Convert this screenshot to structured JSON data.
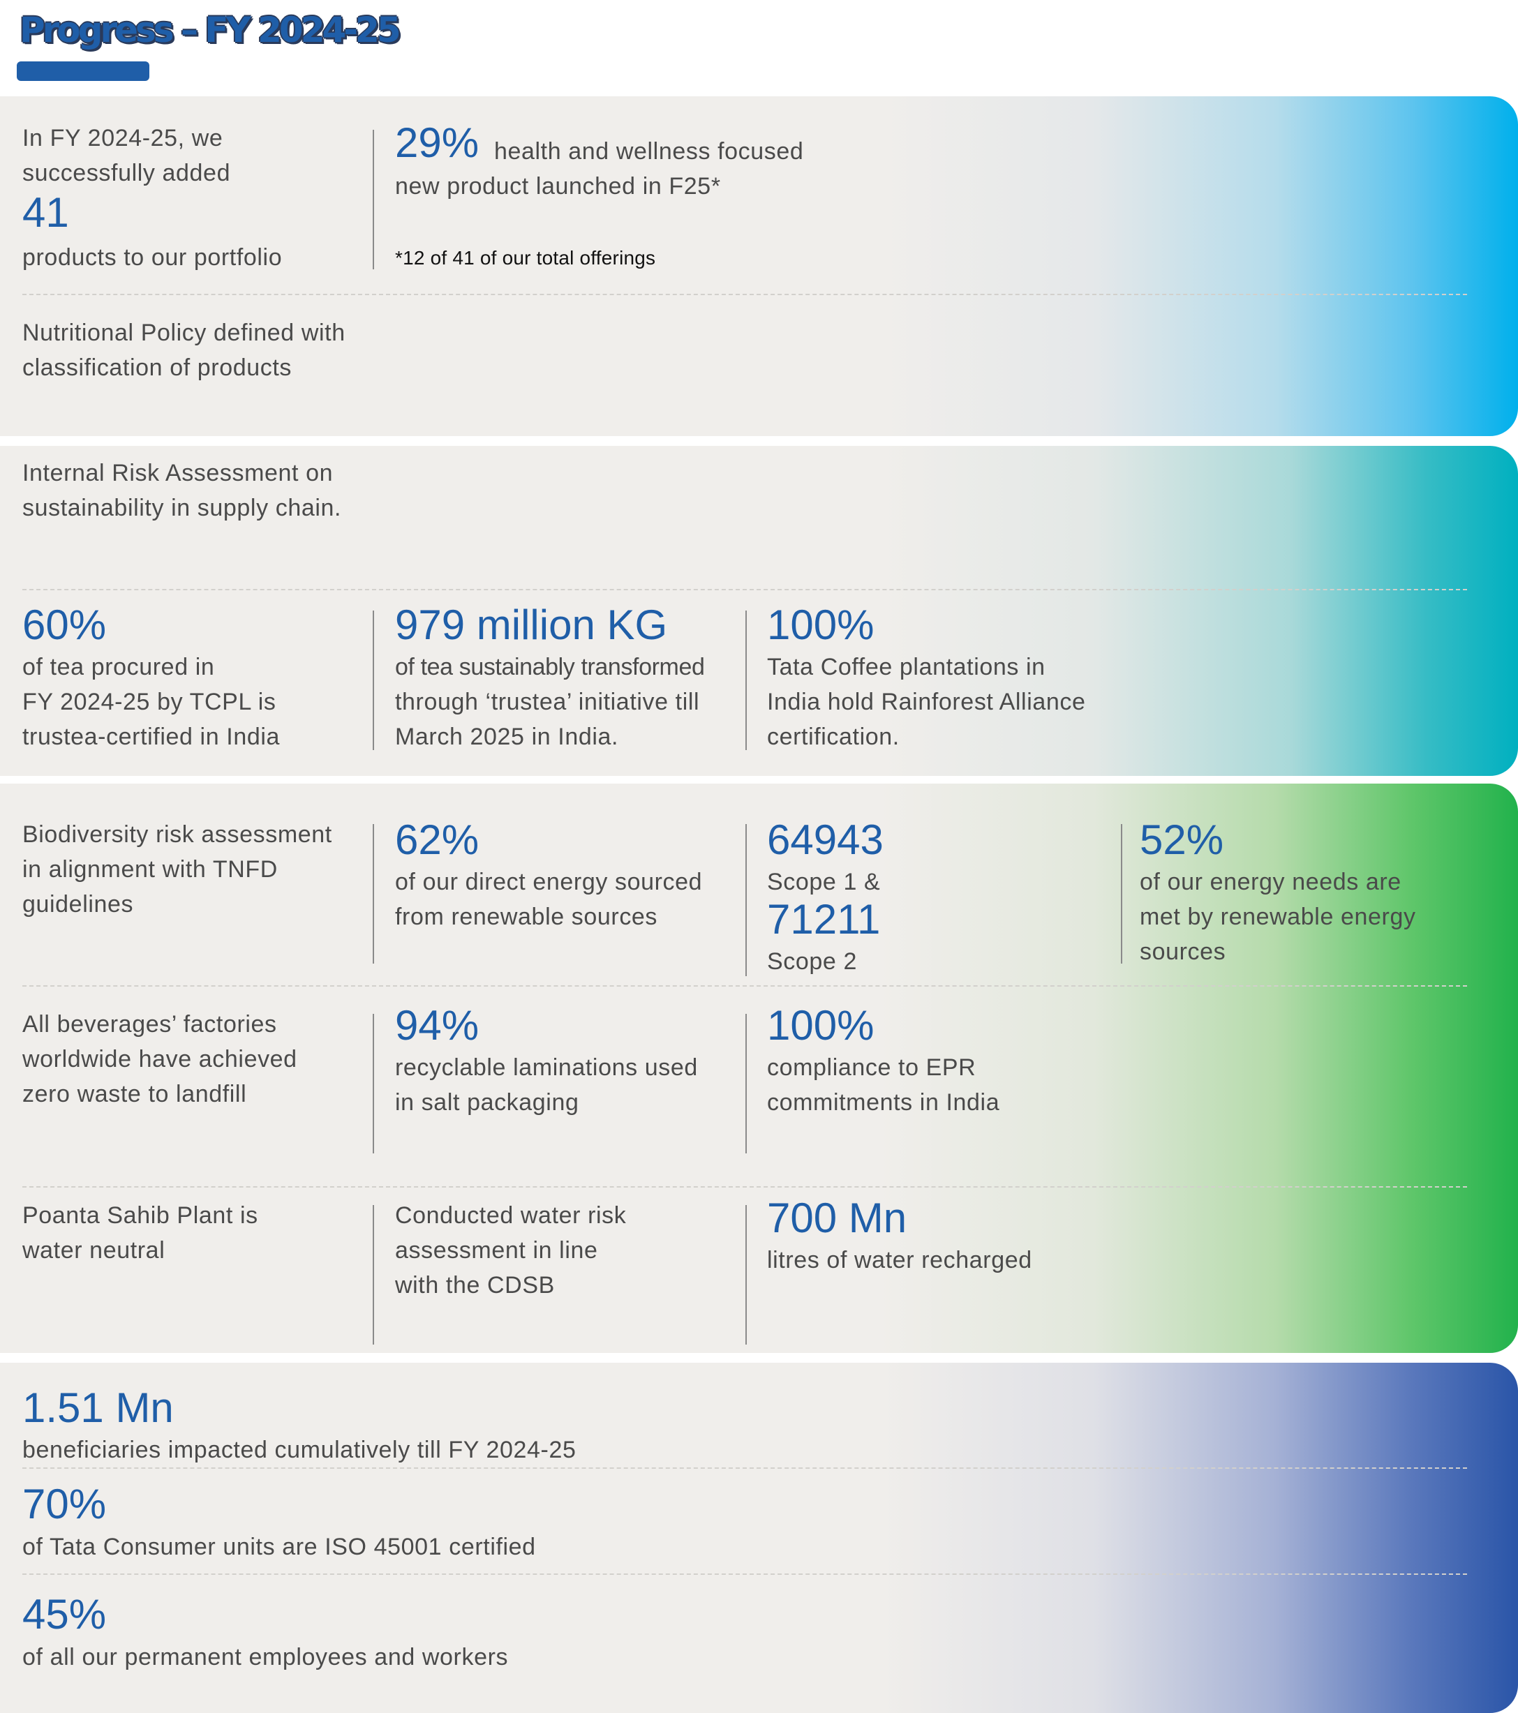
{
  "header": {
    "title": "Progress – FY 2024-25"
  },
  "colors": {
    "accent_blue": "#1f5ea8",
    "panel_bg": "#f0eeeb",
    "panel1_edge": "#00b0ec",
    "panel2_edge": "#00b0c0",
    "panel3_edge": "#22b24c",
    "panel4_edge": "#2a55a8"
  },
  "panel1": {
    "products_intro": "In FY 2024-25, we successfully added",
    "products_value": "41",
    "products_desc": "products to our portfolio",
    "health_value": "29%",
    "health_desc_a": "health and wellness focused",
    "health_desc_b": "new product launched in F25*",
    "footnote": "*12 of 41 of our total offerings",
    "nutrition_a": "Nutritional Policy defined with",
    "nutrition_b": "classification of products"
  },
  "panel2": {
    "risk_a": "Internal Risk Assessment on",
    "risk_b": "sustainability in supply chain.",
    "stat1_value": "60%",
    "stat1_a": "of tea procured in",
    "stat1_b": "FY 2024-25 by TCPL is",
    "stat1_c": "trustea-certified in India",
    "stat2_value": "979 million KG",
    "stat2_a": "of tea sustainably transformed",
    "stat2_b": "through ‘trustea’ initiative till",
    "stat2_c": "March 2025 in India.",
    "stat3_value": "100%",
    "stat3_a": "Tata Coffee plantations in",
    "stat3_b": "India hold Rainforest Alliance",
    "stat3_c": "certification."
  },
  "panel3": {
    "bio_a": "Biodiversity risk assessment",
    "bio_b": "in alignment with TNFD",
    "bio_c": "guidelines",
    "energy_value": "62%",
    "energy_a": "of our direct energy sourced",
    "energy_b": "from renewable sources",
    "scope1_value": "64943",
    "scope1_label": "Scope 1 &",
    "scope2_value": "71211",
    "scope2_label": "Scope 2",
    "needs_value": "52%",
    "needs_a": "of our energy needs are",
    "needs_b": "met by renewable energy",
    "needs_c": "sources",
    "factories_a": "All beverages’ factories",
    "factories_b": "worldwide have achieved",
    "factories_c": "zero waste to landfill",
    "recyc_value": "94%",
    "recyc_a": "recyclable laminations used",
    "recyc_b": "in salt packaging",
    "epr_value": "100%",
    "epr_a": "compliance to EPR",
    "epr_b": "commitments in India",
    "poanta_a": "Poanta Sahib Plant is",
    "poanta_b": "water neutral",
    "water_risk_a": "Conducted water risk",
    "water_risk_b": "assessment in line",
    "water_risk_c": "with the CDSB",
    "recharge_value": "700 Mn",
    "recharge_desc": "litres of water recharged"
  },
  "panel4": {
    "benef_value": "1.51 Mn",
    "benef_desc": "beneficiaries impacted cumulatively till FY 2024-25",
    "iso_value": "70%",
    "iso_desc": "of Tata Consumer units are ISO 45001 certified",
    "perm_value": "45%",
    "perm_desc": "of all our permanent employees and workers"
  }
}
